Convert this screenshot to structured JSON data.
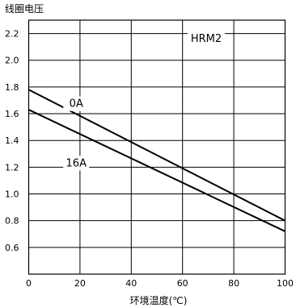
{
  "chart_data": {
    "type": "line",
    "ylabel": "线圈电压",
    "xlabel": "环境温度(℃)",
    "annotation": "HRM2",
    "xlim": [
      0,
      100
    ],
    "ylim": [
      0.4,
      2.3
    ],
    "xticks": [
      0,
      20,
      40,
      60,
      80,
      100
    ],
    "yticks": [
      0.6,
      0.8,
      1.0,
      1.2,
      1.4,
      1.6,
      1.8,
      2.0,
      2.2
    ],
    "grid": true,
    "series": [
      {
        "name": "0A",
        "x": [
          0,
          100
        ],
        "y": [
          1.78,
          0.8
        ]
      },
      {
        "name": "16A",
        "x": [
          0,
          100
        ],
        "y": [
          1.63,
          0.72
        ]
      }
    ]
  }
}
